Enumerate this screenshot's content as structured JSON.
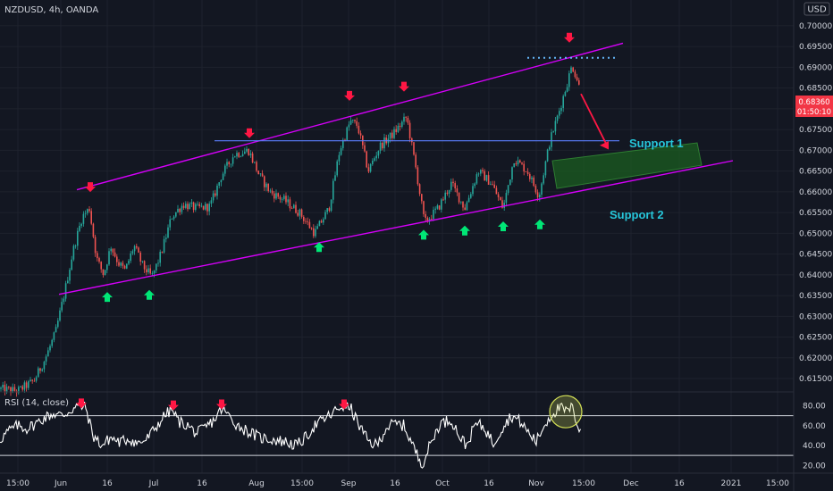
{
  "header": {
    "symbol": "NZDUSD, 4h, OANDA",
    "currency": "USD"
  },
  "price_tag": {
    "price": "0.68360",
    "countdown": "01:50:10",
    "color": "#f23645"
  },
  "rsi_label": "RSI (14, close)",
  "annotations": {
    "support1": "Support 1",
    "support2": "Support 2"
  },
  "colors": {
    "background": "#131722",
    "up": "#26a69a",
    "down": "#ef5350",
    "channel": "#d500f9",
    "support_line": "#5b7fff",
    "support_label": "#26c6da",
    "zone": "#1b5e20",
    "arrow_up": "#00e676",
    "arrow_down": "#ff1744"
  },
  "chart_data": [
    {
      "type": "candlestick",
      "symbol": "NZDUSD",
      "interval": "4h",
      "broker": "OANDA",
      "ylim": [
        0.612,
        0.7045
      ],
      "y_ticks": [
        "0.70000",
        "0.69500",
        "0.69000",
        "0.68500",
        "0.68000",
        "0.67500",
        "0.67000",
        "0.66500",
        "0.66000",
        "0.65500",
        "0.65000",
        "0.64500",
        "0.64000",
        "0.63500",
        "0.63000",
        "0.62500",
        "0.62000",
        "0.61500"
      ],
      "x_ticks": [
        "15:00",
        "Jun",
        "16",
        "Jul",
        "16",
        "Aug",
        "15:00",
        "Sep",
        "16",
        "Oct",
        "16",
        "Nov",
        "15:00",
        "Dec",
        "16",
        "2021",
        "15:00"
      ],
      "last_price": 0.6836,
      "path": [
        [
          0,
          0.6125
        ],
        [
          20,
          0.612
        ],
        [
          38,
          0.6145
        ],
        [
          50,
          0.6195
        ],
        [
          62,
          0.626
        ],
        [
          72,
          0.6355
        ],
        [
          82,
          0.646
        ],
        [
          92,
          0.654
        ],
        [
          100,
          0.656
        ],
        [
          108,
          0.644
        ],
        [
          116,
          0.64
        ],
        [
          124,
          0.647
        ],
        [
          132,
          0.643
        ],
        [
          140,
          0.641
        ],
        [
          150,
          0.647
        ],
        [
          160,
          0.642
        ],
        [
          170,
          0.6395
        ],
        [
          180,
          0.645
        ],
        [
          192,
          0.654
        ],
        [
          205,
          0.657
        ],
        [
          220,
          0.656
        ],
        [
          235,
          0.6565
        ],
        [
          248,
          0.664
        ],
        [
          262,
          0.669
        ],
        [
          278,
          0.67
        ],
        [
          290,
          0.664
        ],
        [
          302,
          0.66
        ],
        [
          318,
          0.658
        ],
        [
          335,
          0.655
        ],
        [
          352,
          0.65
        ],
        [
          368,
          0.656
        ],
        [
          380,
          0.67
        ],
        [
          392,
          0.677
        ],
        [
          400,
          0.676
        ],
        [
          412,
          0.665
        ],
        [
          425,
          0.671
        ],
        [
          440,
          0.674
        ],
        [
          455,
          0.678
        ],
        [
          465,
          0.666
        ],
        [
          475,
          0.6525
        ],
        [
          490,
          0.656
        ],
        [
          505,
          0.662
        ],
        [
          520,
          0.656
        ],
        [
          535,
          0.665
        ],
        [
          550,
          0.662
        ],
        [
          563,
          0.656
        ],
        [
          575,
          0.668
        ],
        [
          590,
          0.665
        ],
        [
          603,
          0.659
        ],
        [
          615,
          0.672
        ],
        [
          625,
          0.679
        ],
        [
          633,
          0.685
        ],
        [
          640,
          0.6905
        ],
        [
          646,
          0.687
        ],
        [
          650,
          0.6836
        ]
      ],
      "channel_upper": {
        "from": [
          86,
          0.6605
        ],
        "to": [
          697,
          0.6958
        ]
      },
      "channel_lower": {
        "from": [
          66,
          0.6353
        ],
        "to": [
          820,
          0.6675
        ]
      },
      "support_1": {
        "price": 0.6723,
        "from_x": 240,
        "to_x": 693,
        "label": "Support 1"
      },
      "support_2_zone": {
        "center_price": 0.6634,
        "label": "Support 2"
      },
      "resistance_dotted": {
        "price": 0.6923
      },
      "arrows_down": [
        [
          101,
          0.6608
        ],
        [
          279,
          0.6738
        ],
        [
          391,
          0.6828
        ],
        [
          452,
          0.685
        ],
        [
          637,
          0.6968
        ]
      ],
      "arrows_up": [
        [
          120,
          0.635
        ],
        [
          167,
          0.6355
        ],
        [
          357,
          0.647
        ],
        [
          474,
          0.65
        ],
        [
          520,
          0.651
        ],
        [
          563,
          0.652
        ],
        [
          604,
          0.6525
        ]
      ]
    },
    {
      "type": "line",
      "name": "RSI (14, close)",
      "ylim": [
        14,
        93
      ],
      "y_ticks": [
        "80.00",
        "60.00",
        "40.00",
        "20.00"
      ],
      "levels": [
        70,
        30
      ],
      "path": [
        [
          0,
          46
        ],
        [
          10,
          55
        ],
        [
          20,
          60
        ],
        [
          30,
          57
        ],
        [
          40,
          62
        ],
        [
          50,
          68
        ],
        [
          60,
          72
        ],
        [
          70,
          70
        ],
        [
          80,
          76
        ],
        [
          88,
          80
        ],
        [
          96,
          78
        ],
        [
          104,
          50
        ],
        [
          114,
          40
        ],
        [
          124,
          48
        ],
        [
          134,
          43
        ],
        [
          144,
          47
        ],
        [
          154,
          42
        ],
        [
          164,
          46
        ],
        [
          174,
          58
        ],
        [
          184,
          70
        ],
        [
          192,
          76
        ],
        [
          200,
          64
        ],
        [
          210,
          60
        ],
        [
          220,
          52
        ],
        [
          230,
          58
        ],
        [
          240,
          66
        ],
        [
          248,
          77
        ],
        [
          256,
          70
        ],
        [
          266,
          60
        ],
        [
          276,
          55
        ],
        [
          290,
          48
        ],
        [
          305,
          46
        ],
        [
          318,
          44
        ],
        [
          332,
          40
        ],
        [
          342,
          48
        ],
        [
          352,
          60
        ],
        [
          362,
          66
        ],
        [
          372,
          72
        ],
        [
          382,
          80
        ],
        [
          392,
          78
        ],
        [
          402,
          60
        ],
        [
          412,
          44
        ],
        [
          422,
          40
        ],
        [
          432,
          58
        ],
        [
          442,
          62
        ],
        [
          452,
          60
        ],
        [
          460,
          44
        ],
        [
          468,
          28
        ],
        [
          473,
          22
        ],
        [
          480,
          38
        ],
        [
          492,
          62
        ],
        [
          505,
          66
        ],
        [
          515,
          48
        ],
        [
          522,
          40
        ],
        [
          532,
          62
        ],
        [
          542,
          58
        ],
        [
          552,
          42
        ],
        [
          562,
          58
        ],
        [
          572,
          70
        ],
        [
          582,
          64
        ],
        [
          592,
          52
        ],
        [
          600,
          44
        ],
        [
          610,
          62
        ],
        [
          618,
          72
        ],
        [
          626,
          78
        ],
        [
          634,
          74
        ],
        [
          640,
          78
        ],
        [
          646,
          62
        ],
        [
          650,
          54
        ]
      ],
      "x_ticks": [
        "15:00",
        "Jun",
        "16",
        "Jul",
        "16",
        "Aug",
        "15:00",
        "Sep",
        "16",
        "Oct",
        "16",
        "Nov",
        "15:00",
        "Dec",
        "16",
        "2021",
        "15:00"
      ],
      "arrows_down": [
        [
          91,
          81
        ],
        [
          194,
          79
        ],
        [
          248,
          80
        ],
        [
          385,
          80
        ]
      ],
      "highlight_circle": [
        633,
        74
      ]
    }
  ]
}
